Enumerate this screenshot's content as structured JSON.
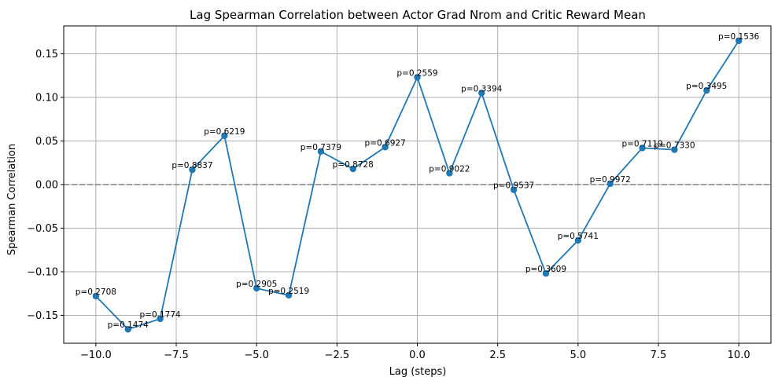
{
  "chart_data": {
    "type": "line",
    "title": "Lag Spearman Correlation between Actor Grad Nrom and Critic Reward Mean",
    "xlabel": "Lag (steps)",
    "ylabel": "Spearman Correlation",
    "xlim": [
      -11,
      11
    ],
    "ylim": [
      -0.182,
      0.182
    ],
    "xticks": [
      -10.0,
      -7.5,
      -5.0,
      -2.5,
      0.0,
      2.5,
      5.0,
      7.5,
      10.0
    ],
    "xtick_labels": [
      "−10.0",
      "−7.5",
      "−5.0",
      "−2.5",
      "0.0",
      "2.5",
      "5.0",
      "7.5",
      "10.0"
    ],
    "yticks": [
      -0.15,
      -0.1,
      -0.05,
      0.0,
      0.05,
      0.1,
      0.15
    ],
    "ytick_labels": [
      "−0.15",
      "−0.10",
      "−0.05",
      "0.00",
      "0.05",
      "0.10",
      "0.15"
    ],
    "grid": true,
    "reference_line": {
      "y": 0,
      "style": "dashed",
      "color": "#808080"
    },
    "series": [
      {
        "color": "#1f77b4",
        "x": [
          -10,
          -9,
          -8,
          -7,
          -6,
          -5,
          -4,
          -3,
          -2,
          -1,
          0,
          1,
          2,
          3,
          4,
          5,
          6,
          7,
          8,
          9,
          10
        ],
        "y": [
          -0.128,
          -0.166,
          -0.154,
          0.017,
          0.056,
          -0.119,
          -0.127,
          0.038,
          0.018,
          0.043,
          0.123,
          0.013,
          0.105,
          -0.006,
          -0.102,
          -0.064,
          0.001,
          0.042,
          0.04,
          0.108,
          0.165
        ],
        "annotations": [
          "p=0.2708",
          "p=0.1474",
          "p=0.1774",
          "p=0.8837",
          "p=0.6219",
          "p=0.2905",
          "p=0.2519",
          "p=0.7379",
          "p=0.8728",
          "p=0.6927",
          "p=0.2559",
          "p=0.9022",
          "p=0.3394",
          "p=0.9537",
          "p=0.3609",
          "p=0.5741",
          "p=0.9972",
          "p=0.7119",
          "p=0.7330",
          "p=0.3495",
          "p=0.1536"
        ]
      }
    ]
  }
}
